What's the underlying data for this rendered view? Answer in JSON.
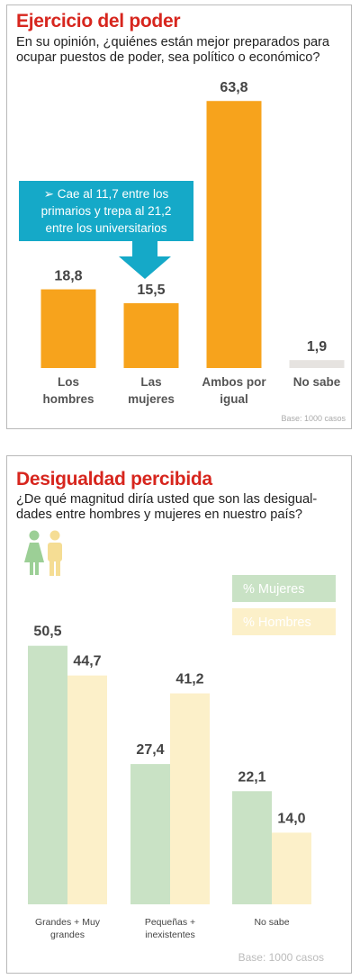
{
  "chart_data": [
    {
      "type": "bar",
      "title": "Ejercicio del poder",
      "subtitle": [
        "En su opinión, ¿quiénes están mejor preparados para",
        "ocupar puestos de poder, sea político o económico?"
      ],
      "categories": [
        [
          "Los",
          "hombres"
        ],
        [
          "Las",
          "mujeres"
        ],
        [
          "Ambos por",
          "igual"
        ],
        [
          "No sabe"
        ]
      ],
      "values": [
        18.8,
        15.5,
        63.8,
        1.9
      ],
      "value_labels": [
        "18,8",
        "15,5",
        "63,8",
        "1,9"
      ],
      "bar_colors": [
        "#f7a31c",
        "#f7a31c",
        "#f7a31c",
        "#e6e3e0"
      ],
      "annotation": [
        "➢ Cae al 11,7 entre los",
        "primarios y trepa al 21,2",
        "entre los universitarios"
      ],
      "annotation_color": "#15a9c8",
      "base_note": "Base: 1000 casos",
      "ylim": [
        0,
        66
      ]
    },
    {
      "type": "bar",
      "title": "Desigualdad percibida",
      "subtitle": [
        "¿De qué magnitud diría usted que son las desigual-",
        "dades entre hombres y mujeres en nuestro país?"
      ],
      "categories": [
        [
          "Grandes + Muy",
          "grandes"
        ],
        [
          "Pequeñas +",
          "inexistentes"
        ],
        [
          "No sabe"
        ]
      ],
      "series": [
        {
          "name": "%  Mujeres",
          "values": [
            50.5,
            27.4,
            22.1
          ],
          "value_labels": [
            "50,5",
            "27,4",
            "22,1"
          ],
          "color": "#c9e2c5"
        },
        {
          "name": "%  Hombres",
          "values": [
            44.7,
            41.2,
            14.0
          ],
          "value_labels": [
            "44,7",
            "41,2",
            "14,0"
          ],
          "color": "#fcf0c9"
        }
      ],
      "legend_colors": [
        "#c9e2c5",
        "#fcf0c9"
      ],
      "icon_colors": {
        "female": "#9ccf96",
        "male": "#f5dd94"
      },
      "base_note": "Base: 1000 casos",
      "ylim": [
        0,
        58
      ]
    }
  ]
}
